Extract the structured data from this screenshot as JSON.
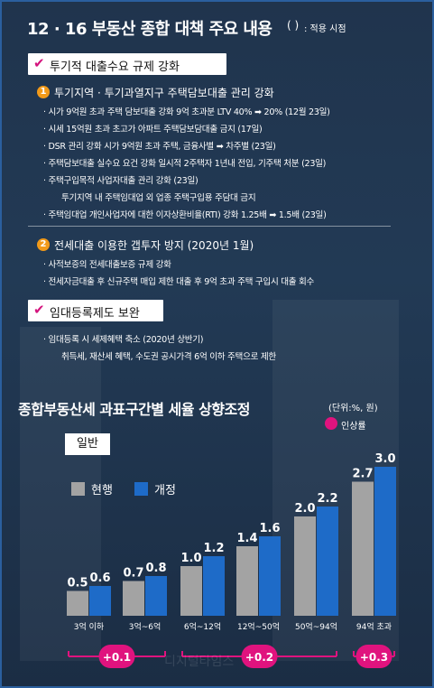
{
  "header": {
    "title": "12 · 16 부동산 종합 대책 주요 내용",
    "paren_glyph": "( )",
    "paren_note": ": 적용 시점"
  },
  "section1": {
    "label": "투기적 대출수요 규제 강화",
    "sub1": {
      "num": "1",
      "title": "투기지역 · 투기과열지구 주택담보대출 관리 강화",
      "items": [
        "· 시가 9억원 초과 주택 담보대출 강화 9억 초과분 LTV 40% ➡ 20% (12월 23일)",
        "· 시세 15억원 초과 초고가 아파트 주택담보담대출 금지 (17일)",
        "· DSR 관리 강화 시가 9억원 초과 주택, 금융사별 ➡ 차주별 (23일)",
        "· 주택담보대출 실수요 요건 강화 일시적 2주택자 1년내 전입, 기주택 처분 (23일)",
        "· 주택구입목적 사업자대출 관리 강화 (23일)",
        "투기지역 내 주택임대업 외 업종 주택구입용 주담대 금지",
        "· 주택임대업 개인사업자에 대한 이자상환비율(RTI) 강화 1.25배 ➡ 1.5배 (23일)"
      ]
    },
    "sub2": {
      "num": "2",
      "title": "전세대출 이용한 갭투자 방지 (2020년 1월)",
      "items": [
        "· 사적보증의 전세대출보증 규제 강화",
        "· 전세자금대출 후 신규주택 매입 제한 대출 후 9억 초과 주택 구입시 대출 회수"
      ]
    }
  },
  "section2": {
    "label": "임대등록제도 보완",
    "items": [
      "· 임대등록 시 세제혜택 축소 (2020년 상반기)",
      "취득세, 재산세 혜택, 수도권 공시가격 6억 이하 주택으로 제한"
    ]
  },
  "chart_header": {
    "title": "종합부동산세 과표구간별 세율 상향조정",
    "unit": "(단위:%, 원)",
    "raise_legend": "인상률",
    "tag": "일반"
  },
  "colors": {
    "current": "#a3a3a3",
    "revised": "#1e6bc8",
    "raise": "#e0137e",
    "check": "#d4147d",
    "badge": "#f29a19"
  },
  "chart_data": {
    "type": "bar",
    "categories": [
      "3억 이하",
      "3억~6억",
      "6억~12억",
      "12억~50억",
      "50억~94억",
      "94억 초과"
    ],
    "series": [
      {
        "name": "현행",
        "values": [
          0.5,
          0.7,
          1.0,
          1.4,
          2.0,
          2.7
        ],
        "labels": [
          "0.5",
          "0.7",
          "1.0",
          "1.4",
          "2.0",
          "2.7"
        ]
      },
      {
        "name": "개정",
        "values": [
          0.6,
          0.8,
          1.2,
          1.6,
          2.2,
          3.0
        ],
        "labels": [
          "0.6",
          "0.8",
          "1.2",
          "1.6",
          "2.2",
          "3.0"
        ]
      }
    ],
    "raise_groups": [
      {
        "label": "+0.1",
        "from_index": 0,
        "to_index": 1
      },
      {
        "label": "+0.2",
        "from_index": 2,
        "to_index": 4
      },
      {
        "label": "+0.3",
        "from_index": 5,
        "to_index": 5
      }
    ],
    "grid": false,
    "legend": "top-left",
    "ylim": [
      0,
      3.0
    ]
  },
  "watermark": "디지털타임스"
}
